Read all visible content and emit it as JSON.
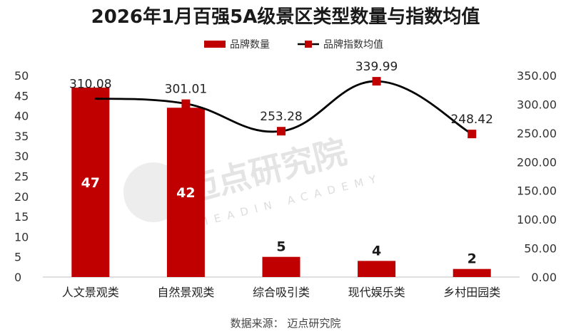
{
  "chart_data": {
    "type": "bar+line",
    "title": "2026年1月百强5A级景区类型数量与指数均值",
    "categories": [
      "人文景观类",
      "自然景观类",
      "综合吸引类",
      "现代娱乐类",
      "乡村田园类"
    ],
    "series": [
      {
        "name": "品牌数量",
        "type": "bar",
        "axis": "left",
        "values": [
          47,
          42,
          5,
          4,
          2
        ],
        "labels": [
          "47",
          "42",
          "5",
          "4",
          "2"
        ]
      },
      {
        "name": "品牌指数均值",
        "type": "line",
        "axis": "right",
        "values": [
          310.08,
          301.01,
          253.28,
          339.99,
          248.42
        ],
        "labels": [
          "310.08",
          "301.01",
          "253.28",
          "339.99",
          "248.42"
        ]
      }
    ],
    "y_left": {
      "min": 0,
      "max": 50,
      "ticks": [
        "0",
        "5",
        "10",
        "15",
        "20",
        "25",
        "30",
        "35",
        "40",
        "45",
        "50"
      ]
    },
    "y_right": {
      "min": 0,
      "max": 350,
      "ticks": [
        "0.00",
        "50.00",
        "100.00",
        "150.00",
        "200.00",
        "250.00",
        "300.00",
        "350.00"
      ]
    },
    "grid": false,
    "legend_position": "top-center",
    "colors": {
      "bar": "#c00000",
      "line": "#000000",
      "marker": "#c00000"
    }
  },
  "source": "数据来源： 迈点研究院",
  "watermark": {
    "cn": "迈点研究院",
    "en": "MEADIN ACADEMY"
  }
}
